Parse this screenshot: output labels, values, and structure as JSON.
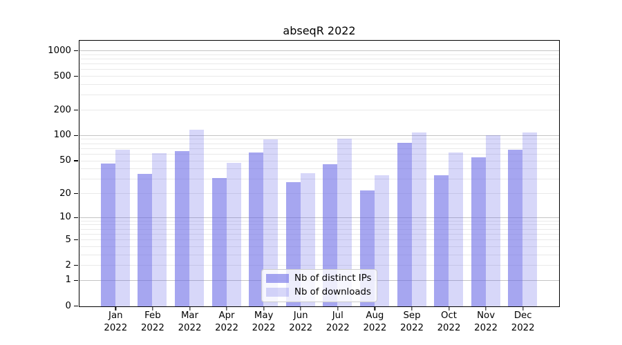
{
  "chart_data": {
    "type": "bar",
    "title": "abseqR 2022",
    "categories": [
      "Jan 2022",
      "Feb 2022",
      "Mar 2022",
      "Apr 2022",
      "May 2022",
      "Jun 2022",
      "Jul 2022",
      "Aug 2022",
      "Sep 2022",
      "Oct 2022",
      "Nov 2022",
      "Dec 2022"
    ],
    "series": [
      {
        "name": "Nb of distinct IPs",
        "color": "rgba(102, 102, 230, 0.58)",
        "color_hex_on_white": "#a5a5f3",
        "values": [
          47,
          35,
          66,
          31,
          64,
          28,
          46,
          22,
          82,
          34,
          55,
          68
        ]
      },
      {
        "name": "Nb of downloads",
        "color": "rgba(102, 102, 230, 0.26)",
        "color_hex_on_white": "#d7d7f8",
        "values": [
          69,
          62,
          119,
          48,
          90,
          36,
          92,
          34,
          110,
          64,
          101,
          110
        ]
      }
    ],
    "yscale": "log1p",
    "yticks": [
      0,
      1,
      2,
      5,
      10,
      20,
      50,
      100,
      200,
      500,
      1000
    ],
    "ylim": [
      0,
      1300
    ],
    "grid": true,
    "grid_major_color": "#c3c3c3",
    "grid_minor_color": "#e9e9e9",
    "legend_position": "lower center",
    "axis_color": "#000000"
  }
}
